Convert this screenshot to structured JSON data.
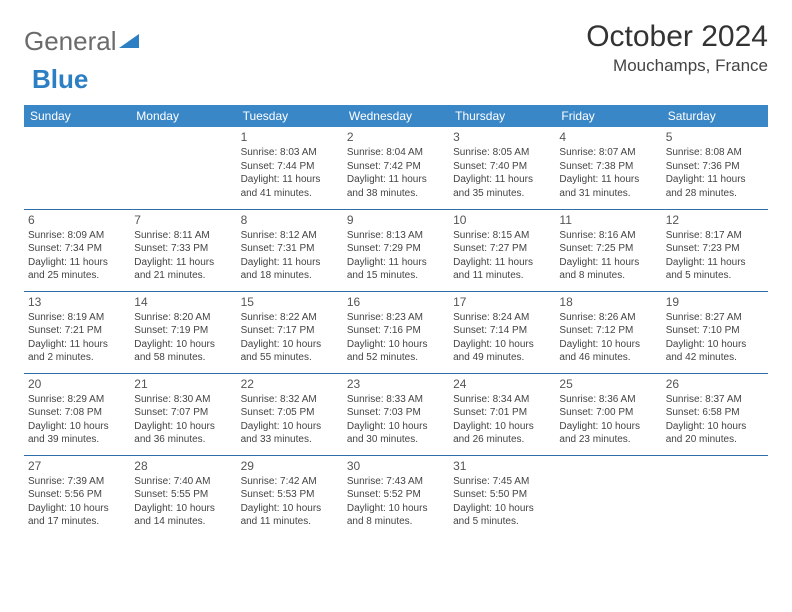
{
  "logo": {
    "general": "General",
    "blue": "Blue"
  },
  "title": "October 2024",
  "location": "Mouchamps, France",
  "colors": {
    "header_bg": "#3a87c8",
    "header_text": "#ffffff",
    "border": "#2d6ea8",
    "text": "#444444",
    "logo_blue": "#2d7fc4",
    "logo_gray": "#6b6b6b"
  },
  "day_headers": [
    "Sunday",
    "Monday",
    "Tuesday",
    "Wednesday",
    "Thursday",
    "Friday",
    "Saturday"
  ],
  "weeks": [
    [
      null,
      null,
      {
        "n": "1",
        "sr": "8:03 AM",
        "ss": "7:44 PM",
        "dl": "11 hours and 41 minutes."
      },
      {
        "n": "2",
        "sr": "8:04 AM",
        "ss": "7:42 PM",
        "dl": "11 hours and 38 minutes."
      },
      {
        "n": "3",
        "sr": "8:05 AM",
        "ss": "7:40 PM",
        "dl": "11 hours and 35 minutes."
      },
      {
        "n": "4",
        "sr": "8:07 AM",
        "ss": "7:38 PM",
        "dl": "11 hours and 31 minutes."
      },
      {
        "n": "5",
        "sr": "8:08 AM",
        "ss": "7:36 PM",
        "dl": "11 hours and 28 minutes."
      }
    ],
    [
      {
        "n": "6",
        "sr": "8:09 AM",
        "ss": "7:34 PM",
        "dl": "11 hours and 25 minutes."
      },
      {
        "n": "7",
        "sr": "8:11 AM",
        "ss": "7:33 PM",
        "dl": "11 hours and 21 minutes."
      },
      {
        "n": "8",
        "sr": "8:12 AM",
        "ss": "7:31 PM",
        "dl": "11 hours and 18 minutes."
      },
      {
        "n": "9",
        "sr": "8:13 AM",
        "ss": "7:29 PM",
        "dl": "11 hours and 15 minutes."
      },
      {
        "n": "10",
        "sr": "8:15 AM",
        "ss": "7:27 PM",
        "dl": "11 hours and 11 minutes."
      },
      {
        "n": "11",
        "sr": "8:16 AM",
        "ss": "7:25 PM",
        "dl": "11 hours and 8 minutes."
      },
      {
        "n": "12",
        "sr": "8:17 AM",
        "ss": "7:23 PM",
        "dl": "11 hours and 5 minutes."
      }
    ],
    [
      {
        "n": "13",
        "sr": "8:19 AM",
        "ss": "7:21 PM",
        "dl": "11 hours and 2 minutes."
      },
      {
        "n": "14",
        "sr": "8:20 AM",
        "ss": "7:19 PM",
        "dl": "10 hours and 58 minutes."
      },
      {
        "n": "15",
        "sr": "8:22 AM",
        "ss": "7:17 PM",
        "dl": "10 hours and 55 minutes."
      },
      {
        "n": "16",
        "sr": "8:23 AM",
        "ss": "7:16 PM",
        "dl": "10 hours and 52 minutes."
      },
      {
        "n": "17",
        "sr": "8:24 AM",
        "ss": "7:14 PM",
        "dl": "10 hours and 49 minutes."
      },
      {
        "n": "18",
        "sr": "8:26 AM",
        "ss": "7:12 PM",
        "dl": "10 hours and 46 minutes."
      },
      {
        "n": "19",
        "sr": "8:27 AM",
        "ss": "7:10 PM",
        "dl": "10 hours and 42 minutes."
      }
    ],
    [
      {
        "n": "20",
        "sr": "8:29 AM",
        "ss": "7:08 PM",
        "dl": "10 hours and 39 minutes."
      },
      {
        "n": "21",
        "sr": "8:30 AM",
        "ss": "7:07 PM",
        "dl": "10 hours and 36 minutes."
      },
      {
        "n": "22",
        "sr": "8:32 AM",
        "ss": "7:05 PM",
        "dl": "10 hours and 33 minutes."
      },
      {
        "n": "23",
        "sr": "8:33 AM",
        "ss": "7:03 PM",
        "dl": "10 hours and 30 minutes."
      },
      {
        "n": "24",
        "sr": "8:34 AM",
        "ss": "7:01 PM",
        "dl": "10 hours and 26 minutes."
      },
      {
        "n": "25",
        "sr": "8:36 AM",
        "ss": "7:00 PM",
        "dl": "10 hours and 23 minutes."
      },
      {
        "n": "26",
        "sr": "8:37 AM",
        "ss": "6:58 PM",
        "dl": "10 hours and 20 minutes."
      }
    ],
    [
      {
        "n": "27",
        "sr": "7:39 AM",
        "ss": "5:56 PM",
        "dl": "10 hours and 17 minutes."
      },
      {
        "n": "28",
        "sr": "7:40 AM",
        "ss": "5:55 PM",
        "dl": "10 hours and 14 minutes."
      },
      {
        "n": "29",
        "sr": "7:42 AM",
        "ss": "5:53 PM",
        "dl": "10 hours and 11 minutes."
      },
      {
        "n": "30",
        "sr": "7:43 AM",
        "ss": "5:52 PM",
        "dl": "10 hours and 8 minutes."
      },
      {
        "n": "31",
        "sr": "7:45 AM",
        "ss": "5:50 PM",
        "dl": "10 hours and 5 minutes."
      },
      null,
      null
    ]
  ],
  "labels": {
    "sunrise": "Sunrise: ",
    "sunset": "Sunset: ",
    "daylight": "Daylight: "
  }
}
